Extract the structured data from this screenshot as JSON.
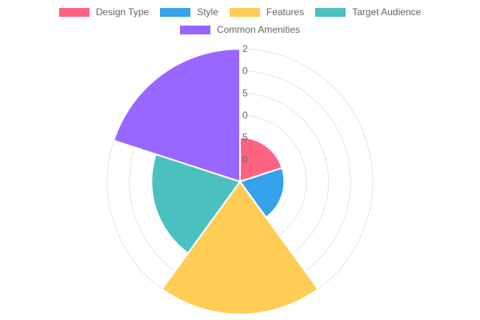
{
  "chart_data": {
    "type": "polarArea",
    "categories": [
      "Design Type",
      "Style",
      "Features",
      "Target Audience",
      "Common Amenities"
    ],
    "values": [
      2,
      2,
      6,
      4,
      6
    ],
    "colors": [
      "#ff6384",
      "#36a2eb",
      "#ffcd56",
      "#4bc0c0",
      "#9966ff"
    ],
    "tick_labels": [
      "0",
      "5",
      "0",
      "5",
      "0",
      "2"
    ],
    "rlim": [
      0,
      6
    ],
    "grid": true,
    "legend_position": "top"
  }
}
